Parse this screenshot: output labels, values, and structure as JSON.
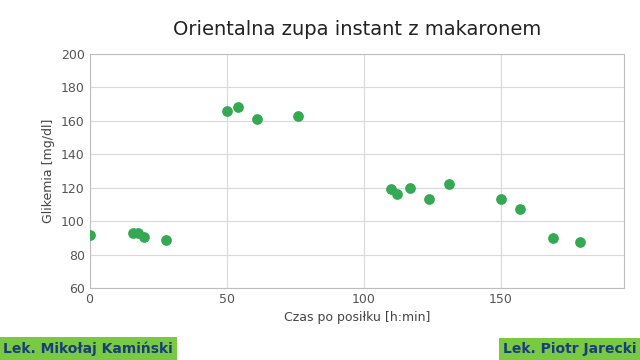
{
  "chart_data": {
    "type": "scatter",
    "title": "Orientalna zupa instant z makaronem",
    "x_label": "Czas po posiłku [h:min]",
    "y_label": "Glikemia [mg/dl]",
    "x": [
      0,
      16,
      17.5,
      20,
      28,
      50,
      54,
      61,
      76,
      110,
      112,
      117,
      124,
      131,
      150,
      157,
      169,
      179
    ],
    "values": [
      91.5,
      92.7,
      92.7,
      90.3,
      89,
      165.6,
      168.5,
      161,
      162.7,
      119,
      116,
      120,
      113,
      122,
      113,
      107,
      90,
      87.5
    ],
    "color": "#34a853",
    "marker": "circle",
    "xlim": [
      0,
      195
    ],
    "xticks": [
      0,
      50,
      100,
      150
    ],
    "ylim": [
      60,
      200
    ],
    "yticks": [
      60,
      80,
      100,
      120,
      140,
      160,
      180,
      200
    ],
    "grid": true,
    "annotations": [
      "Lek. Mikołaj Kamiński",
      "Lek. Piotr Jarecki"
    ]
  }
}
